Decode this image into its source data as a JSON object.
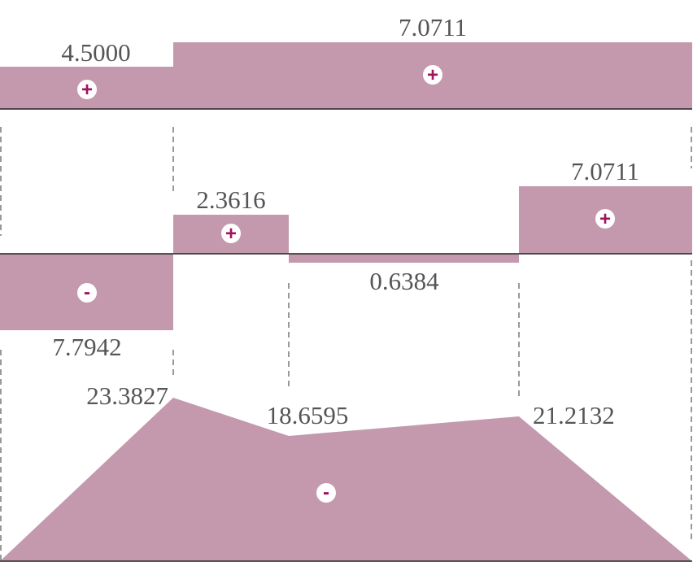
{
  "colors": {
    "fill": "#c499ad",
    "sign_positive": "#a0135f",
    "sign_negative": "#ffffff",
    "text": "#555555"
  },
  "diagrams": [
    {
      "segments": [
        {
          "label": "4.5000",
          "sign": "+"
        },
        {
          "label": "7.0711",
          "sign": "+"
        }
      ]
    },
    {
      "segments": [
        {
          "label": "7.7942",
          "sign": "-"
        },
        {
          "label": "2.3616",
          "sign": "+"
        },
        {
          "label": "0.6384",
          "sign": "-"
        },
        {
          "label": "7.0711",
          "sign": "+"
        }
      ]
    },
    {
      "vertex_labels": [
        "23.3827",
        "18.6595",
        "21.2132"
      ],
      "sign": "-"
    }
  ]
}
